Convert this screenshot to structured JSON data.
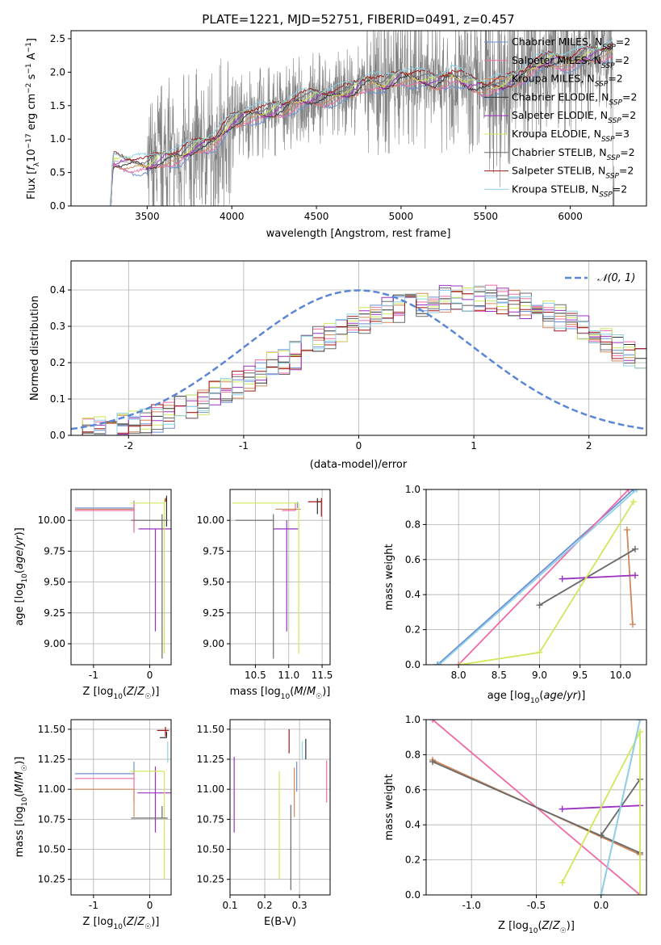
{
  "figure_title": "PLATE=1221, MJD=52751, FIBERID=0491, z=0.457",
  "model_colors": [
    "#6b8fd6",
    "#f06aa5",
    "#d0875a",
    "#303030",
    "#9a30c0",
    "#cfe85a",
    "#6a6a6a",
    "#a01515",
    "#8ed0e6"
  ],
  "chart_data": [
    {
      "id": "spectrum",
      "type": "line",
      "title": "PLATE=1221, MJD=52751, FIBERID=0491, z=0.457",
      "xlabel": "wavelength [Angstrom, rest frame]",
      "ylabel": "Flux [f_λ 10^-17 erg cm^-2 s^-1 A^-1]",
      "xlim": [
        3050,
        6450
      ],
      "ylim": [
        0.0,
        2.62
      ],
      "xticks": [
        3500,
        4000,
        4500,
        5000,
        5500,
        6000
      ],
      "yticks": [
        0.0,
        0.5,
        1.0,
        1.5,
        2.0,
        2.5
      ],
      "grid": false,
      "legend_position": "upper right",
      "legend": [
        {
          "base": "Chabrier MILES, N",
          "sub": "SSP",
          "tail": "=2"
        },
        {
          "base": "Salpeter MILES, N",
          "sub": "SSP",
          "tail": "=2"
        },
        {
          "base": "Kroupa MILES, N",
          "sub": "SSP",
          "tail": "=2"
        },
        {
          "base": "Chabrier ELODIE, N",
          "sub": "SSP",
          "tail": "=2"
        },
        {
          "base": "Salpeter ELODIE, N",
          "sub": "SSP",
          "tail": "=2"
        },
        {
          "base": "Kroupa ELODIE, N",
          "sub": "SSP",
          "tail": "=3"
        },
        {
          "base": "Chabrier STELIB, N",
          "sub": "SSP",
          "tail": "=2"
        },
        {
          "base": "Salpeter STELIB, N",
          "sub": "SSP",
          "tail": "=2"
        },
        {
          "base": "Kroupa STELIB, N",
          "sub": "SSP",
          "tail": "=2"
        }
      ],
      "data_series": {
        "name": "data",
        "color": "#808080"
      },
      "model_continuum": {
        "x": [
          3280,
          3300,
          3400,
          3500,
          3600,
          3700,
          3800,
          3900,
          4000,
          4100,
          4200,
          4300,
          4400,
          4500,
          4600,
          4700,
          4800,
          4900,
          5000,
          5100,
          5200,
          5300,
          5400,
          5500,
          5600,
          5700,
          5800,
          5900,
          6000,
          6100,
          6200,
          6250
        ],
        "y": [
          0.0,
          0.67,
          0.65,
          0.6,
          0.72,
          0.75,
          0.9,
          0.97,
          1.25,
          1.38,
          1.38,
          1.47,
          1.58,
          1.62,
          1.65,
          1.7,
          1.88,
          1.8,
          1.95,
          1.9,
          1.85,
          1.95,
          1.83,
          1.78,
          1.8,
          1.95,
          2.1,
          2.2,
          2.15,
          2.25,
          2.3,
          2.33
        ]
      }
    },
    {
      "id": "residuals",
      "type": "histogram",
      "xlabel": "(data-model)/error",
      "ylabel": "Normed distribution",
      "xlim": [
        -2.5,
        2.5
      ],
      "ylim": [
        0.0,
        0.48
      ],
      "xticks": [
        -2,
        -1,
        0,
        1,
        2
      ],
      "yticks": [
        0.0,
        0.1,
        0.2,
        0.3,
        0.4
      ],
      "grid": true,
      "legend_position": "upper right",
      "reference_curve": {
        "label": "𝒩(0, 1)",
        "mean": 0,
        "std": 1,
        "color": "#5b86d6"
      },
      "bin_width": 0.1,
      "bin_start": -2.5,
      "envelope": [
        0.015,
        0.018,
        0.02,
        0.022,
        0.025,
        0.028,
        0.035,
        0.045,
        0.055,
        0.07,
        0.08,
        0.095,
        0.11,
        0.125,
        0.14,
        0.155,
        0.175,
        0.19,
        0.205,
        0.22,
        0.24,
        0.26,
        0.275,
        0.29,
        0.305,
        0.32,
        0.33,
        0.34,
        0.35,
        0.36,
        0.365,
        0.37,
        0.375,
        0.38,
        0.38,
        0.38,
        0.375,
        0.37,
        0.36,
        0.355,
        0.345,
        0.33,
        0.32,
        0.305,
        0.29,
        0.275,
        0.26,
        0.24,
        0.225,
        0.21,
        0.195,
        0.185,
        0.17,
        0.16,
        0.15,
        0.14,
        0.13,
        0.12,
        0.11,
        0.1,
        0.095,
        0.09,
        0.085,
        0.08,
        0.075,
        0.07,
        0.065,
        0.062,
        0.06,
        0.06,
        0.06,
        0.06,
        0.06,
        0.06,
        0.06,
        0.06,
        0.06,
        0.06,
        0.06,
        0.06
      ]
    },
    {
      "id": "age_vs_z",
      "type": "scatter",
      "xlabel": "Z [log10(Z/Z☉)]",
      "ylabel": "age  [log10(age/yr)]",
      "xlim": [
        -1.4,
        0.38
      ],
      "ylim": [
        8.83,
        10.25
      ],
      "xticks": [
        -1,
        0
      ],
      "yticks": [
        9.0,
        9.25,
        9.5,
        9.75,
        10.0
      ],
      "grid": true,
      "points": [
        {
          "x": -0.28,
          "xerr": [
            1.05,
            0.0
          ],
          "y": 10.1,
          "yerr": [
            0.18,
            0.06
          ],
          "model": 0
        },
        {
          "x": -0.28,
          "xerr": [
            1.05,
            0.0
          ],
          "y": 10.08,
          "yerr": [
            0.18,
            0.06
          ],
          "model": 1
        },
        {
          "x": -0.28,
          "xerr": [
            1.05,
            0.0
          ],
          "y": 10.09,
          "yerr": [
            0.0,
            0.0
          ],
          "model": 2
        },
        {
          "x": 0.3,
          "xerr": [
            0.0,
            0.0
          ],
          "y": 10.15,
          "yerr": [
            0.2,
            0.05
          ],
          "model": 3
        },
        {
          "x": 0.1,
          "xerr": [
            0.3,
            0.32
          ],
          "y": 9.93,
          "yerr": [
            0.83,
            0.0
          ],
          "model": 4
        },
        {
          "x": 0.26,
          "xerr": [
            0.6,
            0.0
          ],
          "y": 10.14,
          "yerr": [
            1.22,
            0.03
          ],
          "model": 5
        },
        {
          "x": 0.22,
          "xerr": [
            0.55,
            0.1
          ],
          "y": 10.0,
          "yerr": [
            1.12,
            0.05
          ],
          "model": 6
        },
        {
          "x": 0.28,
          "xerr": [
            0.0,
            0.0
          ],
          "y": 10.15,
          "yerr": [
            0.0,
            0.03
          ],
          "model": 7
        },
        {
          "x": 0.32,
          "xerr": [
            0.0,
            0.0
          ],
          "y": 10.17,
          "yerr": [
            0.0,
            0.0
          ],
          "model": 8
        }
      ]
    },
    {
      "id": "age_vs_mass",
      "type": "scatter",
      "xlabel": "mass [log10(M/M☉)]",
      "ylabel": "",
      "xlim": [
        10.12,
        11.62
      ],
      "ylim": [
        8.83,
        10.25
      ],
      "xticks": [
        10.5,
        11.0,
        11.5
      ],
      "yticks": [
        9.0,
        9.25,
        9.5,
        9.75,
        10.0
      ],
      "grid": true,
      "points": [
        {
          "x": 11.13,
          "xerr": [
            0.0,
            0.0
          ],
          "y": 10.1,
          "yerr": [
            0.0,
            0.05
          ],
          "model": 0
        },
        {
          "x": 11.1,
          "xerr": [
            0.2,
            0.0
          ],
          "y": 10.08,
          "yerr": [
            0.0,
            0.06
          ],
          "model": 1
        },
        {
          "x": 11.0,
          "xerr": [
            0.2,
            0.18
          ],
          "y": 10.09,
          "yerr": [
            0.0,
            0.0
          ],
          "model": 2
        },
        {
          "x": 11.43,
          "xerr": [
            0.0,
            0.05
          ],
          "y": 10.15,
          "yerr": [
            0.1,
            0.03
          ],
          "model": 3
        },
        {
          "x": 10.97,
          "xerr": [
            0.2,
            0.17
          ],
          "y": 9.93,
          "yerr": [
            0.83,
            0.07
          ],
          "model": 4
        },
        {
          "x": 11.15,
          "xerr": [
            1.0,
            0.0
          ],
          "y": 10.14,
          "yerr": [
            1.22,
            0.0
          ],
          "model": 5
        },
        {
          "x": 10.77,
          "xerr": [
            0.57,
            0.0
          ],
          "y": 10.0,
          "yerr": [
            1.12,
            0.05
          ],
          "model": 6
        },
        {
          "x": 11.49,
          "xerr": [
            0.2,
            0.0
          ],
          "y": 10.15,
          "yerr": [
            0.12,
            0.03
          ],
          "model": 7
        },
        {
          "x": 11.47,
          "xerr": [
            0.0,
            0.0
          ],
          "y": 10.17,
          "yerr": [
            0.0,
            0.0
          ],
          "model": 8
        }
      ]
    },
    {
      "id": "weight_vs_age",
      "type": "line",
      "xlabel": "age  [log10(age/yr)]",
      "ylabel": "mass weight",
      "xlim": [
        7.6,
        10.32
      ],
      "ylim": [
        0.0,
        1.0
      ],
      "xticks": [
        8.0,
        8.5,
        9.0,
        9.5,
        10.0
      ],
      "yticks": [
        0.0,
        0.2,
        0.4,
        0.6,
        0.8,
        1.0
      ],
      "grid": true,
      "series": [
        {
          "model": 0,
          "x": [
            7.74,
            10.16
          ],
          "y": [
            0.0,
            1.0
          ]
        },
        {
          "model": 1,
          "x": [
            8.0,
            10.1
          ],
          "y": [
            0.0,
            1.0
          ]
        },
        {
          "model": 2,
          "x": [
            10.08,
            10.15
          ],
          "y": [
            0.77,
            0.23
          ]
        },
        {
          "model": 6,
          "x": [
            9.0,
            10.18
          ],
          "y": [
            0.34,
            0.66
          ]
        },
        {
          "model": 4,
          "x": [
            9.28,
            10.18
          ],
          "y": [
            0.49,
            0.51
          ]
        },
        {
          "model": 5,
          "x": [
            8.02,
            9.0,
            10.16
          ],
          "y": [
            0.0,
            0.07,
            0.93
          ]
        },
        {
          "model": 8,
          "x": [
            7.76,
            10.2
          ],
          "y": [
            0.0,
            1.0
          ]
        }
      ]
    },
    {
      "id": "mass_vs_z",
      "type": "scatter",
      "xlabel": "Z [log10(Z/Z☉)]",
      "ylabel": "mass [log10(M/M☉)]",
      "xlim": [
        -1.4,
        0.38
      ],
      "ylim": [
        10.12,
        11.58
      ],
      "xticks": [
        -1,
        0
      ],
      "yticks": [
        10.25,
        10.5,
        10.75,
        11.0,
        11.25,
        11.5
      ],
      "grid": true,
      "points": [
        {
          "x": -0.28,
          "xerr": [
            1.05,
            0.0
          ],
          "y": 11.13,
          "yerr": [
            0.0,
            0.1
          ],
          "model": 0
        },
        {
          "x": -0.28,
          "xerr": [
            1.05,
            0.0
          ],
          "y": 11.09,
          "yerr": [
            0.2,
            0.06
          ],
          "model": 1
        },
        {
          "x": -0.28,
          "xerr": [
            1.05,
            0.0
          ],
          "y": 11.0,
          "yerr": [
            0.23,
            0.0
          ],
          "model": 2
        },
        {
          "x": 0.3,
          "xerr": [
            0.12,
            0.0
          ],
          "y": 11.43,
          "yerr": [
            0.0,
            0.05
          ],
          "model": 3
        },
        {
          "x": 0.1,
          "xerr": [
            0.32,
            0.3
          ],
          "y": 10.97,
          "yerr": [
            0.33,
            0.22
          ],
          "model": 4
        },
        {
          "x": 0.26,
          "xerr": [
            0.6,
            0.0
          ],
          "y": 11.15,
          "yerr": [
            0.9,
            0.0
          ],
          "model": 5
        },
        {
          "x": 0.22,
          "xerr": [
            0.55,
            0.1
          ],
          "y": 10.76,
          "yerr": [
            0.0,
            0.1
          ],
          "model": 6
        },
        {
          "x": 0.28,
          "xerr": [
            0.15,
            0.06
          ],
          "y": 11.49,
          "yerr": [
            0.05,
            0.03
          ],
          "model": 7
        },
        {
          "x": 0.32,
          "xerr": [
            0.0,
            0.0
          ],
          "y": 11.4,
          "yerr": [
            0.18,
            0.0
          ],
          "model": 8
        }
      ]
    },
    {
      "id": "mass_vs_ebv",
      "type": "scatter",
      "xlabel": "E(B-V)",
      "ylabel": "",
      "xlim": [
        0.1,
        0.388
      ],
      "ylim": [
        10.12,
        11.58
      ],
      "xticks": [
        0.1,
        0.2,
        0.3
      ],
      "yticks": [
        10.25,
        10.5,
        10.75,
        11.0,
        11.25,
        11.5
      ],
      "grid": true,
      "points": [
        {
          "x": 0.292,
          "xerr": [
            0.0,
            0.0
          ],
          "y": 11.13,
          "yerr": [
            0.15,
            0.1
          ],
          "model": 0
        },
        {
          "x": 0.378,
          "xerr": [
            0.0,
            0.0
          ],
          "y": 11.09,
          "yerr": [
            0.2,
            0.15
          ],
          "model": 1
        },
        {
          "x": 0.285,
          "xerr": [
            0.0,
            0.0
          ],
          "y": 11.0,
          "yerr": [
            0.23,
            0.18
          ],
          "model": 2
        },
        {
          "x": 0.318,
          "xerr": [
            0.0,
            0.0
          ],
          "y": 11.35,
          "yerr": [
            0.1,
            0.07
          ],
          "model": 3
        },
        {
          "x": 0.112,
          "xerr": [
            0.0,
            0.0
          ],
          "y": 10.97,
          "yerr": [
            0.33,
            0.3
          ],
          "model": 4
        },
        {
          "x": 0.242,
          "xerr": [
            0.0,
            0.0
          ],
          "y": 11.15,
          "yerr": [
            0.9,
            0.0
          ],
          "model": 5
        },
        {
          "x": 0.275,
          "xerr": [
            0.0,
            0.0
          ],
          "y": 10.76,
          "yerr": [
            0.6,
            0.11
          ],
          "model": 6
        },
        {
          "x": 0.27,
          "xerr": [
            0.0,
            0.0
          ],
          "y": 11.4,
          "yerr": [
            0.1,
            0.1
          ],
          "model": 7
        },
        {
          "x": 0.308,
          "xerr": [
            0.0,
            0.0
          ],
          "y": 11.35,
          "yerr": [
            0.1,
            0.05
          ],
          "model": 8
        }
      ]
    },
    {
      "id": "weight_vs_z",
      "type": "line",
      "xlabel": "Z [log10(Z/Z☉)]",
      "ylabel": "mass weight",
      "xlim": [
        -1.35,
        0.35
      ],
      "ylim": [
        0.0,
        1.0
      ],
      "xticks": [
        -1.0,
        -0.5,
        0.0
      ],
      "yticks": [
        0.0,
        0.2,
        0.4,
        0.6,
        0.8,
        1.0
      ],
      "grid": true,
      "series": [
        {
          "model": 0,
          "x": [
            0.0,
            0.3
          ],
          "y": [
            0.0,
            1.0
          ]
        },
        {
          "model": 1,
          "x": [
            -1.3,
            0.3
          ],
          "y": [
            1.0,
            0.0
          ]
        },
        {
          "model": 2,
          "x": [
            -1.3,
            0.3
          ],
          "y": [
            0.77,
            0.23
          ]
        },
        {
          "model": 6,
          "x": [
            -1.3,
            0.3
          ],
          "y": [
            0.76,
            0.24
          ]
        },
        {
          "model": 6,
          "x": [
            0.0,
            0.3
          ],
          "y": [
            0.34,
            0.66
          ]
        },
        {
          "model": 4,
          "x": [
            -0.3,
            0.3
          ],
          "y": [
            0.49,
            0.51
          ]
        },
        {
          "model": 5,
          "x": [
            -0.3,
            0.3,
            0.3
          ],
          "y": [
            0.07,
            0.93,
            0.0
          ]
        },
        {
          "model": 8,
          "x": [
            0.0,
            0.3
          ],
          "y": [
            0.0,
            1.0
          ]
        }
      ]
    }
  ]
}
